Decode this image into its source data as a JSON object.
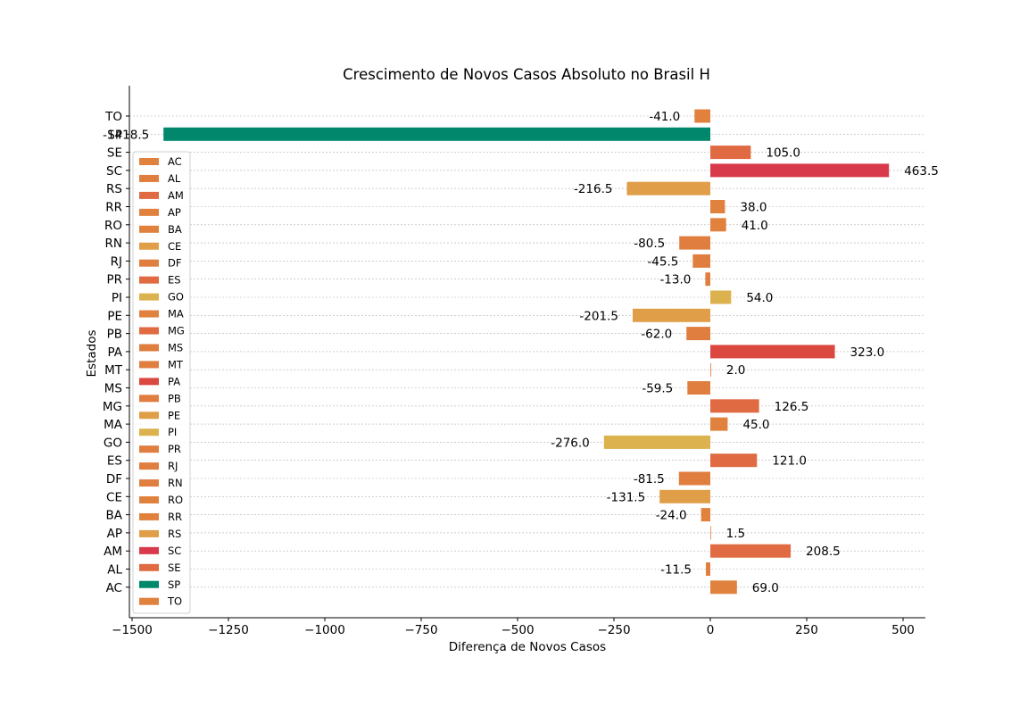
{
  "chart_data": {
    "type": "bar",
    "orientation": "horizontal",
    "title": "Crescimento de Novos Casos Absoluto no Brasil H",
    "xlabel": "Diferença de Novos Casos",
    "ylabel": "Estados",
    "xlim": [
      -1500,
      560
    ],
    "xticks": [
      -1500,
      -1250,
      -1000,
      -750,
      -500,
      -250,
      0,
      250,
      500
    ],
    "xtick_labels": [
      "−1500",
      "−1250",
      "−1000",
      "−750",
      "−500",
      "−250",
      "0",
      "250",
      "500"
    ],
    "grid": "horizontal dashed",
    "legend_position": "left",
    "categories": [
      "TO",
      "SP",
      "SE",
      "SC",
      "RS",
      "RR",
      "RO",
      "RN",
      "RJ",
      "PR",
      "PI",
      "PE",
      "PB",
      "PA",
      "MT",
      "MS",
      "MG",
      "MA",
      "GO",
      "ES",
      "DF",
      "CE",
      "BA",
      "AP",
      "AM",
      "AL",
      "AC"
    ],
    "values": [
      -41.0,
      -1418.5,
      105.0,
      463.5,
      -216.5,
      38.0,
      41.0,
      -80.5,
      -45.5,
      -13.0,
      54.0,
      -201.5,
      -62.0,
      323.0,
      2.0,
      -59.5,
      126.5,
      45.0,
      -276.0,
      121.0,
      -81.5,
      -131.5,
      -24.0,
      1.5,
      208.5,
      -11.5,
      69.0
    ],
    "value_labels": [
      "-41.0",
      "-1418.5",
      "105.0",
      "463.5",
      "-216.5",
      "38.0",
      "41.0",
      "-80.5",
      "-45.5",
      "-13.0",
      "54.0",
      "-201.5",
      "-62.0",
      "323.0",
      "2.0",
      "-59.5",
      "126.5",
      "45.0",
      "-276.0",
      "121.0",
      "-81.5",
      "-131.5",
      "-24.0",
      "1.5",
      "208.5",
      "-11.5",
      "69.0"
    ],
    "colors": [
      "#e0823e",
      "#00876c",
      "#e06a42",
      "#d83a4c",
      "#e09e48",
      "#e0823e",
      "#e0823e",
      "#e07e40",
      "#e07e40",
      "#e07e40",
      "#dcb24e",
      "#e09e48",
      "#e07e40",
      "#da4840",
      "#e07e40",
      "#e07e40",
      "#e06a42",
      "#e0823e",
      "#dcb24e",
      "#e06a42",
      "#e07e40",
      "#e09e48",
      "#e0823e",
      "#e0823e",
      "#e06a42",
      "#e07e40",
      "#e0823e"
    ],
    "legend": {
      "entries": [
        "AC",
        "AL",
        "AM",
        "AP",
        "BA",
        "CE",
        "DF",
        "ES",
        "GO",
        "MA",
        "MG",
        "MS",
        "MT",
        "PA",
        "PB",
        "PE",
        "PI",
        "PR",
        "RJ",
        "RN",
        "RO",
        "RR",
        "RS",
        "SC",
        "SE",
        "SP",
        "TO"
      ],
      "colors": [
        "#e0823e",
        "#e07e40",
        "#e06a42",
        "#e0823e",
        "#e0823e",
        "#e09e48",
        "#e07e40",
        "#e06a42",
        "#dcb24e",
        "#e0823e",
        "#e06a42",
        "#e07e40",
        "#e07e40",
        "#da4840",
        "#e07e40",
        "#e09e48",
        "#dcb24e",
        "#e07e40",
        "#e07e40",
        "#e07e40",
        "#e0823e",
        "#e0823e",
        "#e09e48",
        "#d83a4c",
        "#e06a42",
        "#00876c",
        "#e0823e"
      ]
    }
  }
}
